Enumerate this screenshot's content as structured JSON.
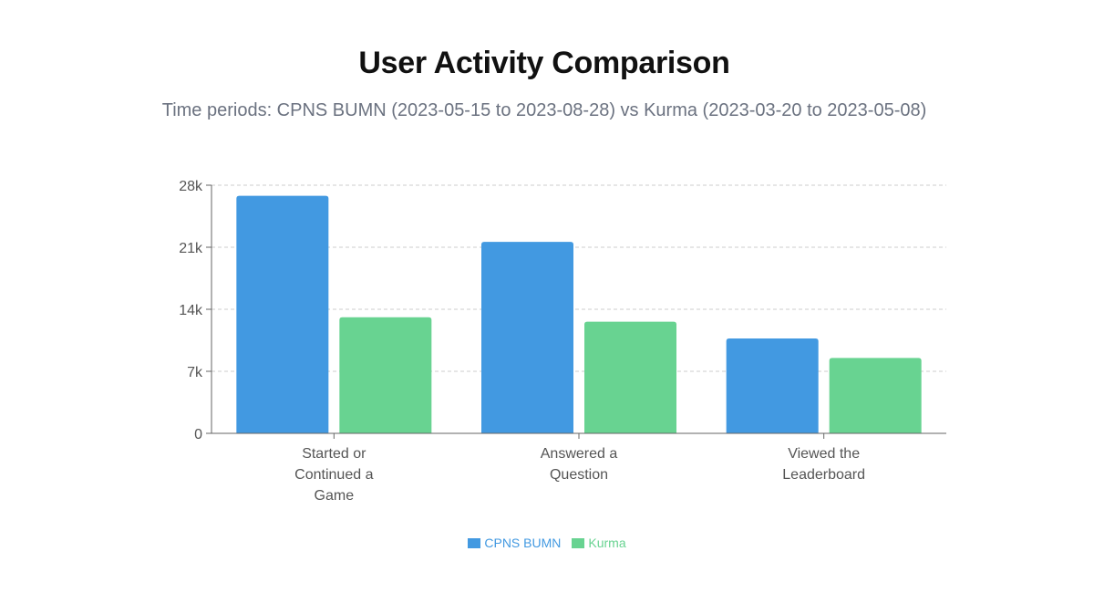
{
  "chart_data": {
    "type": "bar",
    "title": "User Activity Comparison",
    "subtitle": "Time periods: CPNS BUMN (2023-05-15 to 2023-08-28) vs Kurma (2023-03-20 to 2023-05-08)",
    "categories": [
      [
        "Started or",
        "Continued a",
        "Game"
      ],
      [
        "Answered a",
        "Question"
      ],
      [
        "Viewed the",
        "Leaderboard"
      ]
    ],
    "series": [
      {
        "name": "CPNS BUMN",
        "color": "#4299e1",
        "values": [
          26800,
          21600,
          10700
        ]
      },
      {
        "name": "Kurma",
        "color": "#68d391",
        "values": [
          13100,
          12600,
          8500
        ]
      }
    ],
    "ylim": [
      0,
      28000
    ],
    "yticks": [
      0,
      7000,
      14000,
      21000,
      28000
    ],
    "ytick_labels": [
      "0",
      "7k",
      "14k",
      "21k",
      "28k"
    ],
    "grid": true,
    "legend_position": "bottom"
  }
}
